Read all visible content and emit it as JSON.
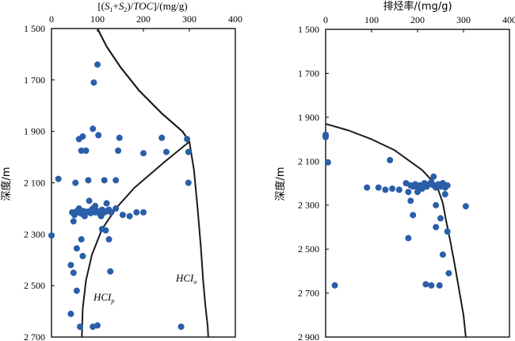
{
  "chart_data": [
    {
      "type": "scatter",
      "title": "",
      "xlabel": "[(S1+S2)/TOC]/(mg/g)",
      "ylabel": "深度/m",
      "xlim": [
        0,
        400
      ],
      "ylim": [
        1500,
        2700
      ],
      "x_ticks": [
        "0",
        "100",
        "200",
        "300",
        "400"
      ],
      "y_ticks": [
        "1 500",
        "1 700",
        "1 900",
        "2 100",
        "2 300",
        "2 500",
        "2 700"
      ],
      "y_tick_values": [
        1500,
        1700,
        1900,
        2100,
        2300,
        2500,
        2700
      ],
      "x_tick_values": [
        0,
        100,
        200,
        300,
        400
      ],
      "grid": false,
      "point_color": "#2a5ea8",
      "points": [
        [
          100,
          1640
        ],
        [
          92,
          1710
        ],
        [
          90,
          1890
        ],
        [
          68,
          1920
        ],
        [
          102,
          1915
        ],
        [
          60,
          1930
        ],
        [
          148,
          1925
        ],
        [
          240,
          1925
        ],
        [
          295,
          1930
        ],
        [
          65,
          1975
        ],
        [
          75,
          1975
        ],
        [
          145,
          1975
        ],
        [
          200,
          1985
        ],
        [
          250,
          1980
        ],
        [
          298,
          1980
        ],
        [
          15,
          2085
        ],
        [
          80,
          2090
        ],
        [
          140,
          2090
        ],
        [
          115,
          2090
        ],
        [
          52,
          2100
        ],
        [
          298,
          2100
        ],
        [
          82,
          2170
        ],
        [
          95,
          2190
        ],
        [
          120,
          2180
        ],
        [
          45,
          2215
        ],
        [
          55,
          2210
        ],
        [
          60,
          2215
        ],
        [
          65,
          2220
        ],
        [
          70,
          2210
        ],
        [
          75,
          2215
        ],
        [
          80,
          2212
        ],
        [
          85,
          2218
        ],
        [
          88,
          2205
        ],
        [
          90,
          2200
        ],
        [
          95,
          2215
        ],
        [
          100,
          2210
        ],
        [
          105,
          2220
        ],
        [
          110,
          2205
        ],
        [
          115,
          2215
        ],
        [
          120,
          2210
        ],
        [
          125,
          2205
        ],
        [
          130,
          2215
        ],
        [
          140,
          2200
        ],
        [
          155,
          2225
        ],
        [
          170,
          2230
        ],
        [
          185,
          2215
        ],
        [
          200,
          2215
        ],
        [
          50,
          2225
        ],
        [
          72,
          2230
        ],
        [
          108,
          2230
        ],
        [
          60,
          2200
        ],
        [
          48,
          2250
        ],
        [
          110,
          2280
        ],
        [
          118,
          2285
        ],
        [
          0,
          2305
        ],
        [
          65,
          2320
        ],
        [
          125,
          2320
        ],
        [
          55,
          2355
        ],
        [
          68,
          2385
        ],
        [
          42,
          2420
        ],
        [
          48,
          2450
        ],
        [
          128,
          2445
        ],
        [
          55,
          2520
        ],
        [
          42,
          2610
        ],
        [
          62,
          2660
        ],
        [
          90,
          2660
        ],
        [
          100,
          2655
        ],
        [
          282,
          2660
        ]
      ],
      "series": [
        {
          "name": "HCIp",
          "label_main": "HCI",
          "label_sub": "p",
          "x": [
            100,
            120,
            150,
            190,
            240,
            285,
            300,
            245,
            180,
            140,
            110,
            88,
            75,
            68,
            66
          ],
          "y": [
            1500,
            1570,
            1650,
            1740,
            1830,
            1900,
            1940,
            2020,
            2120,
            2200,
            2280,
            2380,
            2480,
            2590,
            2700
          ]
        },
        {
          "name": "HCIo",
          "label_main": "HCI",
          "label_sub": "o",
          "x": [
            100,
            120,
            150,
            190,
            240,
            285,
            300,
            310,
            318,
            325,
            330,
            335,
            340,
            341
          ],
          "y": [
            1500,
            1570,
            1650,
            1740,
            1830,
            1900,
            1940,
            2050,
            2200,
            2350,
            2480,
            2580,
            2660,
            2700
          ]
        }
      ]
    },
    {
      "type": "scatter",
      "title": "",
      "xlabel": "排烃率/(mg/g)",
      "ylabel": "深度/m",
      "xlim": [
        0,
        400
      ],
      "ylim": [
        1500,
        2900
      ],
      "x_ticks": [
        "0",
        "100",
        "200",
        "300",
        "400"
      ],
      "y_ticks": [
        "1 500",
        "1 700",
        "1 900",
        "2 100",
        "2 300",
        "2 500",
        "2 700",
        "2 900"
      ],
      "y_tick_values": [
        1500,
        1700,
        1900,
        2100,
        2300,
        2500,
        2700,
        2900
      ],
      "x_tick_values": [
        0,
        100,
        200,
        300,
        400
      ],
      "grid": false,
      "point_color": "#2a5ea8",
      "points": [
        [
          0,
          1990
        ],
        [
          0,
          1980
        ],
        [
          5,
          2105
        ],
        [
          140,
          2095
        ],
        [
          90,
          2220
        ],
        [
          115,
          2220
        ],
        [
          130,
          2230
        ],
        [
          145,
          2225
        ],
        [
          160,
          2230
        ],
        [
          175,
          2200
        ],
        [
          185,
          2210
        ],
        [
          190,
          2215
        ],
        [
          195,
          2205
        ],
        [
          200,
          2220
        ],
        [
          205,
          2210
        ],
        [
          210,
          2225
        ],
        [
          215,
          2200
        ],
        [
          220,
          2215
        ],
        [
          225,
          2205
        ],
        [
          230,
          2195
        ],
        [
          235,
          2210
        ],
        [
          240,
          2220
        ],
        [
          245,
          2205
        ],
        [
          250,
          2215
        ],
        [
          255,
          2200
        ],
        [
          260,
          2220
        ],
        [
          265,
          2210
        ],
        [
          180,
          2240
        ],
        [
          200,
          2240
        ],
        [
          235,
          2170
        ],
        [
          185,
          2280
        ],
        [
          240,
          2300
        ],
        [
          260,
          2250
        ],
        [
          305,
          2305
        ],
        [
          190,
          2345
        ],
        [
          250,
          2360
        ],
        [
          240,
          2400
        ],
        [
          265,
          2420
        ],
        [
          180,
          2450
        ],
        [
          255,
          2525
        ],
        [
          268,
          2610
        ],
        [
          20,
          2665
        ],
        [
          218,
          2660
        ],
        [
          230,
          2665
        ],
        [
          248,
          2665
        ]
      ],
      "series": [
        {
          "name": "",
          "x": [
            0,
            50,
            100,
            150,
            180,
            210,
            230,
            245,
            255,
            262,
            270,
            280,
            290,
            300,
            305
          ],
          "y": [
            1930,
            1960,
            2000,
            2050,
            2095,
            2140,
            2185,
            2230,
            2290,
            2370,
            2450,
            2560,
            2680,
            2800,
            2900
          ]
        }
      ]
    }
  ]
}
